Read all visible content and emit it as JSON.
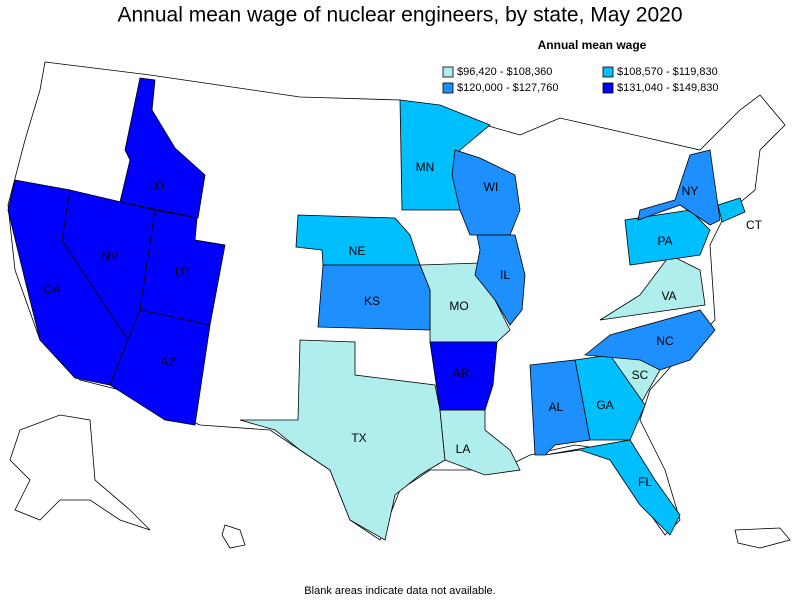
{
  "title": "Annual mean wage of nuclear engineers, by state, May 2020",
  "legend": {
    "title": "Annual mean wage",
    "items": [
      {
        "label": "$96,420 - $108,360",
        "color": "#b0eeee",
        "states": [
          "MO",
          "TX",
          "LA",
          "SC",
          "VA"
        ]
      },
      {
        "label": "$108,570 - $119,830",
        "color": "#00bfff",
        "states": [
          "MN",
          "NE",
          "PA",
          "CT",
          "GA",
          "FL"
        ]
      },
      {
        "label": "$120,000 - $127,760",
        "color": "#1e8fff",
        "states": [
          "WI",
          "NY",
          "IL",
          "KS",
          "NC",
          "AL"
        ]
      },
      {
        "label": "$131,040 - $149,830",
        "color": "#0000ff",
        "states": [
          "ID",
          "CA",
          "NV",
          "UT",
          "AZ",
          "AR"
        ]
      }
    ]
  },
  "footnote": "Blank areas indicate data not available."
}
